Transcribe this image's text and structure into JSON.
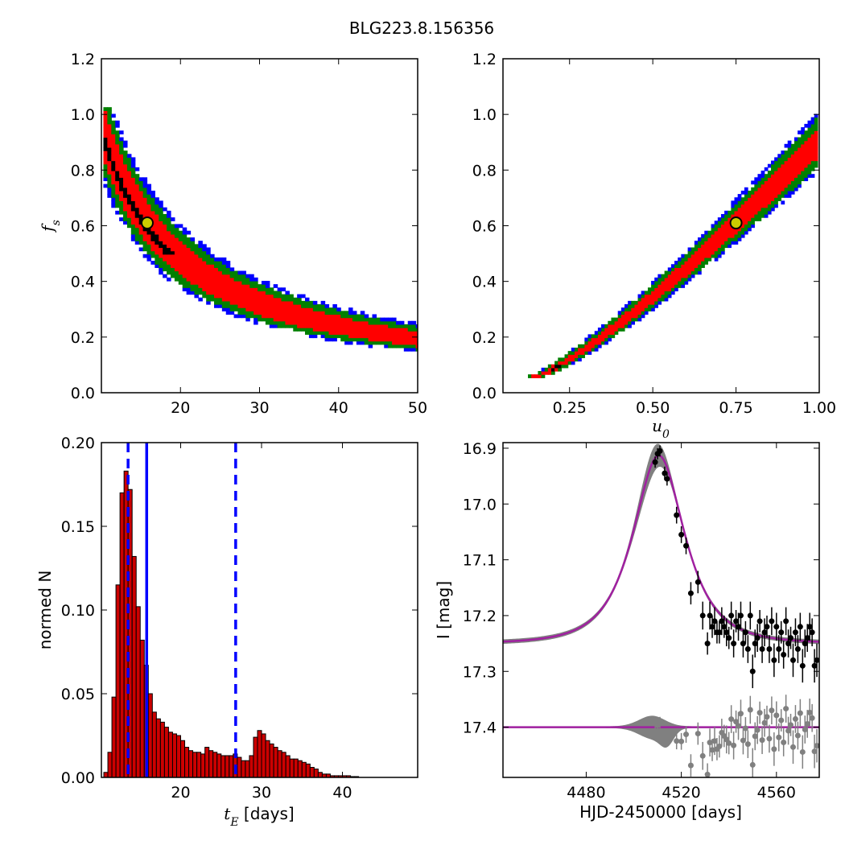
{
  "figure": {
    "title": "BLG223.8.156356"
  },
  "colors": {
    "sigma1": "#ff0000",
    "sigma2": "#008000",
    "sigma3": "#0000ff",
    "core": "#000000",
    "best_fit_marker_fill": "#cccc00",
    "hist_bar": "#cc0000",
    "ci_line": "#0000ff",
    "model_line": "#a020a0",
    "model_band": "#808080",
    "data_points": "#000000",
    "residual_points": "#808080"
  },
  "chart_data": [
    {
      "id": "fs_vs_tE",
      "type": "heatmap",
      "title": "",
      "xlabel": "",
      "ylabel": "f_s",
      "xlim": [
        10,
        50
      ],
      "ylim": [
        0,
        1.2
      ],
      "xticks": [
        "20",
        "30",
        "40",
        "50"
      ],
      "yticks": [
        "0.0",
        "0.2",
        "0.4",
        "0.6",
        "0.8",
        "1.0",
        "1.2"
      ],
      "best_fit": {
        "tE": 15.8,
        "fs": 0.61
      },
      "relation": "fs ≈ 0.61 * 15.8 / tE (credible region, fs ≤ 1.03)"
    },
    {
      "id": "fs_vs_u0",
      "type": "heatmap",
      "title": "",
      "xlabel": "u_0",
      "ylabel": "",
      "xlim": [
        0.05,
        1.0
      ],
      "ylim": [
        0,
        1.2
      ],
      "xticks": [
        "0.25",
        "0.50",
        "0.75",
        "1.00"
      ],
      "yticks": [
        "0.0",
        "0.2",
        "0.4",
        "0.6",
        "0.8",
        "1.0",
        "1.2"
      ],
      "best_fit": {
        "u0": 0.75,
        "fs": 0.61
      },
      "relation": "fs rises with u0 from (0.15, 0.06) to (1.0, 1.03)"
    },
    {
      "id": "tE_histogram",
      "type": "bar",
      "xlabel": "t_E [days]",
      "ylabel": "normed N",
      "xlim": [
        10.2,
        49.3
      ],
      "ylim": [
        0,
        0.2
      ],
      "xticks": [
        "20",
        "30",
        "40"
      ],
      "yticks": [
        "0.00",
        "0.05",
        "0.10",
        "0.15",
        "0.20"
      ],
      "bin_start": 10.5,
      "bin_width": 0.5,
      "values": [
        0.003,
        0.015,
        0.048,
        0.115,
        0.17,
        0.183,
        0.172,
        0.132,
        0.102,
        0.082,
        0.067,
        0.05,
        0.039,
        0.035,
        0.033,
        0.03,
        0.027,
        0.026,
        0.025,
        0.022,
        0.018,
        0.016,
        0.015,
        0.015,
        0.014,
        0.018,
        0.016,
        0.015,
        0.014,
        0.013,
        0.013,
        0.013,
        0.014,
        0.012,
        0.01,
        0.01,
        0.013,
        0.024,
        0.028,
        0.026,
        0.022,
        0.02,
        0.018,
        0.016,
        0.015,
        0.013,
        0.011,
        0.011,
        0.01,
        0.009,
        0.008,
        0.006,
        0.005,
        0.003,
        0.002,
        0.002,
        0.001,
        0.001,
        0.001,
        0.001,
        0.001,
        0.0005,
        0.0005
      ],
      "median": 15.8,
      "ci_lower": 13.5,
      "ci_upper": 26.8
    },
    {
      "id": "lightcurve",
      "type": "line",
      "xlabel": "HJD-2450000 [days]",
      "ylabel": "I [mag]",
      "xlim": [
        4445,
        4578
      ],
      "ylim": [
        17.49,
        16.89
      ],
      "xticks": [
        "4480",
        "4520",
        "4560"
      ],
      "yticks": [
        "16.9",
        "17.0",
        "17.1",
        "17.2",
        "17.3",
        "17.4"
      ],
      "model": {
        "baseline_mag": 17.25,
        "peak_mag": 16.913,
        "t0": 4510.5,
        "tE": 15.8,
        "u0": 0.75,
        "fs": 0.61
      },
      "residual_offset_mag": 17.4,
      "data": {
        "t": [
          4509,
          4510,
          4511,
          4513,
          4514,
          4518,
          4520,
          4522,
          4524,
          4527,
          4529,
          4531,
          4532,
          4533,
          4534,
          4535,
          4536,
          4537,
          4538,
          4539,
          4540,
          4541,
          4542,
          4543,
          4544,
          4545,
          4546,
          4547,
          4548,
          4549,
          4550,
          4551,
          4552,
          4553,
          4554,
          4555,
          4556,
          4557,
          4558,
          4559,
          4560,
          4561,
          4562,
          4563,
          4564,
          4565,
          4566,
          4567,
          4568,
          4569,
          4570,
          4571,
          4572,
          4573,
          4574,
          4575,
          4576,
          4577
        ],
        "mag": [
          16.925,
          16.91,
          16.905,
          16.945,
          16.955,
          17.02,
          17.055,
          17.075,
          17.16,
          17.14,
          17.2,
          17.25,
          17.2,
          17.22,
          17.21,
          17.23,
          17.23,
          17.21,
          17.22,
          17.23,
          17.24,
          17.2,
          17.25,
          17.21,
          17.22,
          17.2,
          17.25,
          17.23,
          17.26,
          17.2,
          17.3,
          17.25,
          17.24,
          17.21,
          17.26,
          17.23,
          17.22,
          17.26,
          17.21,
          17.28,
          17.22,
          17.26,
          17.23,
          17.27,
          17.21,
          17.25,
          17.24,
          17.28,
          17.23,
          17.26,
          17.22,
          17.29,
          17.25,
          17.24,
          17.22,
          17.23,
          17.29,
          17.28
        ],
        "err": [
          0.01,
          0.01,
          0.01,
          0.012,
          0.012,
          0.015,
          0.015,
          0.015,
          0.02,
          0.02,
          0.025,
          0.02,
          0.025,
          0.02,
          0.025,
          0.02,
          0.02,
          0.025,
          0.02,
          0.025,
          0.02,
          0.025,
          0.025,
          0.02,
          0.025,
          0.025,
          0.025,
          0.02,
          0.025,
          0.025,
          0.03,
          0.025,
          0.025,
          0.02,
          0.025,
          0.025,
          0.02,
          0.025,
          0.025,
          0.03,
          0.025,
          0.025,
          0.02,
          0.025,
          0.025,
          0.025,
          0.02,
          0.03,
          0.025,
          0.025,
          0.025,
          0.03,
          0.025,
          0.025,
          0.025,
          0.025,
          0.03,
          0.03
        ]
      }
    }
  ]
}
